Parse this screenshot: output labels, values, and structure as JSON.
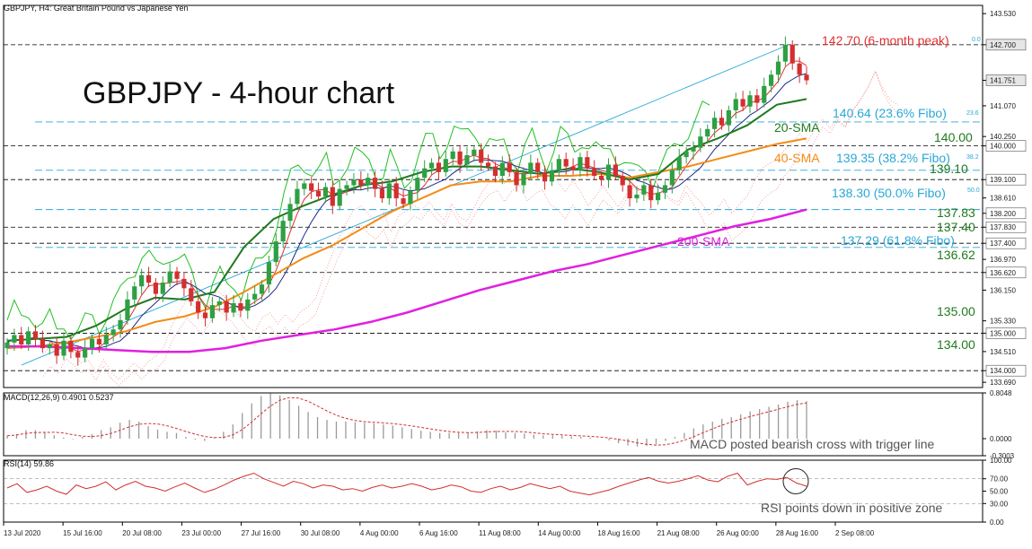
{
  "header": {
    "symbol_info": "GBPJPY, H4:  Great Britain Pound vs Japanese Yen",
    "chart_title": "GBPJPY - 4-hour chart"
  },
  "colors": {
    "bull": "#2ea043",
    "bear": "#d32f2f",
    "sma20": "#1f7a1f",
    "sma40": "#f28c16",
    "sma200": "#e020e0",
    "fibo": "#29a8d8",
    "macd": "#9a9a9a",
    "signal": "#d32f2f",
    "rsi": "#d32f2f",
    "green_line": "#21c021",
    "navy_line": "#1d2a8a",
    "red_line": "#e03030",
    "cloud": "#f5a0a0"
  },
  "chart_data": [
    {
      "type": "candlestick",
      "name": "price",
      "yticks": [
        "143.530",
        "142.700",
        "141.751",
        "141.070",
        "140.250",
        "140.000",
        "139.100",
        "138.610",
        "138.200",
        "137.830",
        "137.400",
        "136.970",
        "136.620",
        "136.150",
        "135.330",
        "135.000",
        "134.510",
        "134.000",
        "133.690"
      ],
      "ylim": [
        133.55,
        143.75
      ],
      "current_price": "141.751",
      "annotations": {
        "peak": "142.70 (6-month peak)",
        "fibo_236": "140.64 (23.6% Fibo)",
        "level_140": "140.00",
        "fibo_382": "139.35 (38.2% Fibo)",
        "level_13910": "139.10",
        "fibo_50": "138.30 (50.0% Fibo)",
        "level_13783": "137.83",
        "level_13740": "137.40",
        "fibo_618": "137.29 (61.8% Fibo)",
        "level_13662": "136.62",
        "level_135": "135.00",
        "level_134": "134.00",
        "sma20": "20-SMA",
        "sma40": "40-SMA",
        "sma200": "200-SMA",
        "fibo_tag_0": "0.0",
        "fibo_tag_236": "23.6",
        "fibo_tag_382": "38.2",
        "fibo_tag_50": "50.0"
      },
      "close_path": [
        134.75,
        134.95,
        134.7,
        135.05,
        134.85,
        134.6,
        134.7,
        134.4,
        134.8,
        134.5,
        134.35,
        134.6,
        134.85,
        134.7,
        134.95,
        135.1,
        135.35,
        135.9,
        136.25,
        136.55,
        136.35,
        136.05,
        136.35,
        136.65,
        136.45,
        136.2,
        135.85,
        135.55,
        135.4,
        135.75,
        135.85,
        135.55,
        135.8,
        135.6,
        135.9,
        136.05,
        136.3,
        136.9,
        137.45,
        138.0,
        138.45,
        138.85,
        139.0,
        138.8,
        138.65,
        138.9,
        138.4,
        138.85,
        138.95,
        139.1,
        138.95,
        139.15,
        138.85,
        138.6,
        139.0,
        138.6,
        138.45,
        138.8,
        139.15,
        139.4,
        139.55,
        139.3,
        139.65,
        139.85,
        139.5,
        139.75,
        139.9,
        139.55,
        139.45,
        139.2,
        139.55,
        139.3,
        138.95,
        139.25,
        139.55,
        139.3,
        139.05,
        139.35,
        139.65,
        139.45,
        139.35,
        139.7,
        139.4,
        139.2,
        139.1,
        139.5,
        139.2,
        138.95,
        138.6,
        138.7,
        138.95,
        138.55,
        138.75,
        138.95,
        139.35,
        139.7,
        139.85,
        139.95,
        140.25,
        140.45,
        140.75,
        140.55,
        140.95,
        141.25,
        141.05,
        141.35,
        141.15,
        141.6,
        141.9,
        142.25,
        142.7,
        142.2,
        141.9,
        141.75
      ],
      "sma20": [
        134.8,
        134.85,
        134.9,
        135.2,
        135.65,
        135.95,
        135.9,
        136.1,
        137.3,
        138.05,
        138.4,
        138.7,
        138.95,
        139.05,
        139.3,
        139.45,
        139.45,
        139.35,
        139.25,
        139.4,
        139.3,
        139.1,
        139.25,
        139.9,
        140.2,
        140.55,
        141.1,
        141.25
      ],
      "sma40": [
        134.6,
        134.65,
        134.75,
        134.9,
        135.05,
        135.3,
        135.45,
        135.7,
        136.1,
        136.55,
        137.0,
        137.35,
        137.8,
        138.25,
        138.6,
        138.95,
        139.05,
        139.05,
        139.2,
        139.2,
        139.25,
        139.15,
        139.3,
        139.45,
        139.65,
        139.85,
        140.05,
        140.2
      ],
      "sma200": [
        134.65,
        134.65,
        134.6,
        134.55,
        134.5,
        134.5,
        134.6,
        134.8,
        134.95,
        135.1,
        135.3,
        135.55,
        135.85,
        136.15,
        136.4,
        136.65,
        136.85,
        137.1,
        137.35,
        137.6,
        137.85,
        138.05,
        138.3
      ],
      "macd_label": "MACD(12,26,9) 0.4901 0.5237",
      "macd_ticks": [
        "0.8048",
        "0.0000",
        "-0.3003"
      ],
      "macd_ylim": [
        -0.3003,
        0.8048
      ],
      "macd_hist": [
        0.05,
        0.08,
        0.15,
        0.15,
        0.12,
        0.06,
        0.02,
        -0.01,
        0.03,
        0.08,
        0.15,
        0.2,
        0.28,
        0.33,
        0.3,
        0.22,
        0.16,
        0.12,
        0.1,
        0.03,
        -0.02,
        -0.04,
        0.02,
        0.12,
        0.25,
        0.45,
        0.62,
        0.75,
        0.8,
        0.76,
        0.68,
        0.58,
        0.47,
        0.38,
        0.33,
        0.3,
        0.3,
        0.29,
        0.28,
        0.27,
        0.25,
        0.23,
        0.2,
        0.17,
        0.14,
        0.12,
        0.1,
        0.1,
        0.1,
        0.11,
        0.13,
        0.15,
        0.14,
        0.11,
        0.1,
        0.09,
        0.07,
        0.06,
        0.06,
        0.05,
        0.04,
        0.03,
        0.02,
        0.0,
        -0.03,
        -0.08,
        -0.12,
        -0.14,
        -0.13,
        -0.1,
        -0.04,
        0.03,
        0.1,
        0.18,
        0.25,
        0.3,
        0.35,
        0.38,
        0.43,
        0.48,
        0.52,
        0.56,
        0.6,
        0.65,
        0.68,
        0.66
      ],
      "macd_annotation": "MACD posted bearish cross with trigger line",
      "rsi_label": "RSI(14) 59.86",
      "rsi_ticks": [
        "100.00",
        "70.00",
        "50.00",
        "30.00",
        "0.00"
      ],
      "rsi_levels": [
        70,
        30
      ],
      "rsi_values": [
        55,
        62,
        48,
        52,
        58,
        50,
        45,
        60,
        54,
        58,
        65,
        52,
        60,
        66,
        58,
        55,
        50,
        57,
        63,
        55,
        48,
        53,
        60,
        68,
        74,
        79,
        70,
        64,
        58,
        66,
        62,
        55,
        60,
        58,
        52,
        54,
        50,
        56,
        60,
        55,
        58,
        62,
        58,
        52,
        55,
        60,
        57,
        50,
        48,
        54,
        58,
        52,
        56,
        62,
        58,
        54,
        58,
        50,
        47,
        44,
        48,
        52,
        58,
        63,
        68,
        72,
        66,
        63,
        66,
        70,
        75,
        68,
        65,
        74,
        79,
        60,
        66,
        70,
        69,
        72,
        63,
        58
      ],
      "rsi_annotation": "RSI points down in positive zone",
      "xticks": [
        "13 Jul 2020",
        "15 Jul 16:00",
        "20 Jul 08:00",
        "23 Jul 00:00",
        "27 Jul 16:00",
        "30 Jul 08:00",
        "4 Aug 00:00",
        "6 Aug 16:00",
        "11 Aug 08:00",
        "14 Aug 00:00",
        "18 Aug 16:00",
        "21 Aug 08:00",
        "26 Aug 00:00",
        "28 Aug 16:00",
        "2 Sep 08:00"
      ]
    }
  ]
}
